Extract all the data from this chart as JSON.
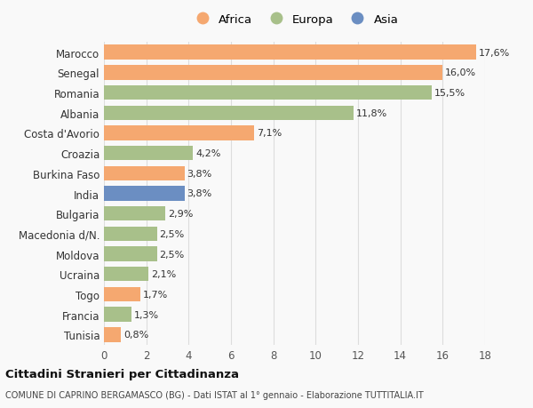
{
  "categories": [
    "Marocco",
    "Senegal",
    "Romania",
    "Albania",
    "Costa d'Avorio",
    "Croazia",
    "Burkina Faso",
    "India",
    "Bulgaria",
    "Macedonia d/N.",
    "Moldova",
    "Ucraina",
    "Togo",
    "Francia",
    "Tunisia"
  ],
  "values": [
    17.6,
    16.0,
    15.5,
    11.8,
    7.1,
    4.2,
    3.8,
    3.8,
    2.9,
    2.5,
    2.5,
    2.1,
    1.7,
    1.3,
    0.8
  ],
  "labels": [
    "17,6%",
    "16,0%",
    "15,5%",
    "11,8%",
    "7,1%",
    "4,2%",
    "3,8%",
    "3,8%",
    "2,9%",
    "2,5%",
    "2,5%",
    "2,1%",
    "1,7%",
    "1,3%",
    "0,8%"
  ],
  "colors": [
    "#F5A870",
    "#F5A870",
    "#A8C08A",
    "#A8C08A",
    "#F5A870",
    "#A8C08A",
    "#F5A870",
    "#6B8EC2",
    "#A8C08A",
    "#A8C08A",
    "#A8C08A",
    "#A8C08A",
    "#F5A870",
    "#A8C08A",
    "#F5A870"
  ],
  "legend": [
    {
      "label": "Africa",
      "color": "#F5A870"
    },
    {
      "label": "Europa",
      "color": "#A8C08A"
    },
    {
      "label": "Asia",
      "color": "#6B8EC2"
    }
  ],
  "xlim": [
    0,
    18
  ],
  "xticks": [
    0,
    2,
    4,
    6,
    8,
    10,
    12,
    14,
    16,
    18
  ],
  "title": "Cittadini Stranieri per Cittadinanza",
  "subtitle": "COMUNE DI CAPRINO BERGAMASCO (BG) - Dati ISTAT al 1° gennaio - Elaborazione TUTTITALIA.IT",
  "background_color": "#f9f9f9",
  "bar_height": 0.72,
  "grid_color": "#dddddd",
  "label_fontsize": 8,
  "tick_fontsize": 8.5,
  "legend_fontsize": 9.5
}
